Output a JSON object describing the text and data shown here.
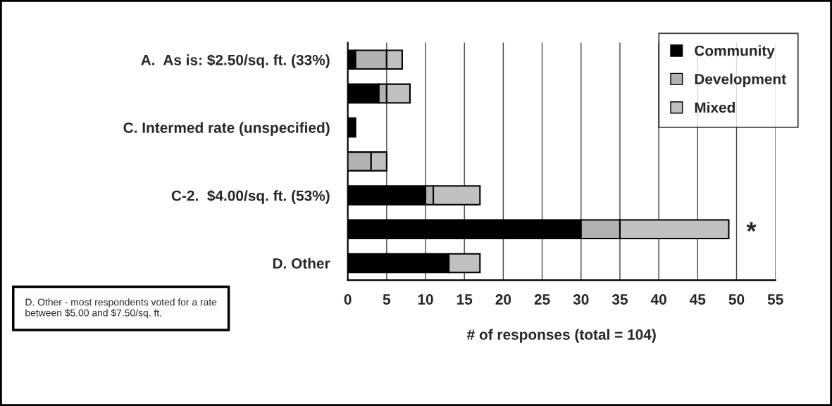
{
  "chart_data": {
    "type": "bar",
    "orientation": "horizontal",
    "stacked": true,
    "categories": [
      "A.  As is: $2.50/sq. ft. (33%)",
      null,
      "C. Intermed rate (unspecified)",
      null,
      "C-2.  $4.00/sq. ft. (53%)",
      null,
      "D. Other"
    ],
    "series": [
      {
        "name": "Community",
        "color": "#000000",
        "values": [
          1,
          4,
          1,
          0,
          10,
          30,
          13
        ]
      },
      {
        "name": "Development",
        "color": "#b2b2b2",
        "values": [
          4,
          1,
          0,
          3,
          1,
          5,
          0
        ]
      },
      {
        "name": "Mixed",
        "color": "#c0c0c0",
        "values": [
          2,
          3,
          0,
          2,
          6,
          14,
          4
        ]
      }
    ],
    "xlabel": "# of responses (total = 104)",
    "xlim": [
      0,
      55
    ],
    "xticks": [
      0,
      5,
      10,
      15,
      20,
      25,
      30,
      35,
      40,
      45,
      50,
      55
    ],
    "grid": "x",
    "legend": "top right",
    "annotations": [
      "*",
      "D. Other - most respondents voted for a rate between $5.00 and $7.50/sq. ft."
    ]
  }
}
